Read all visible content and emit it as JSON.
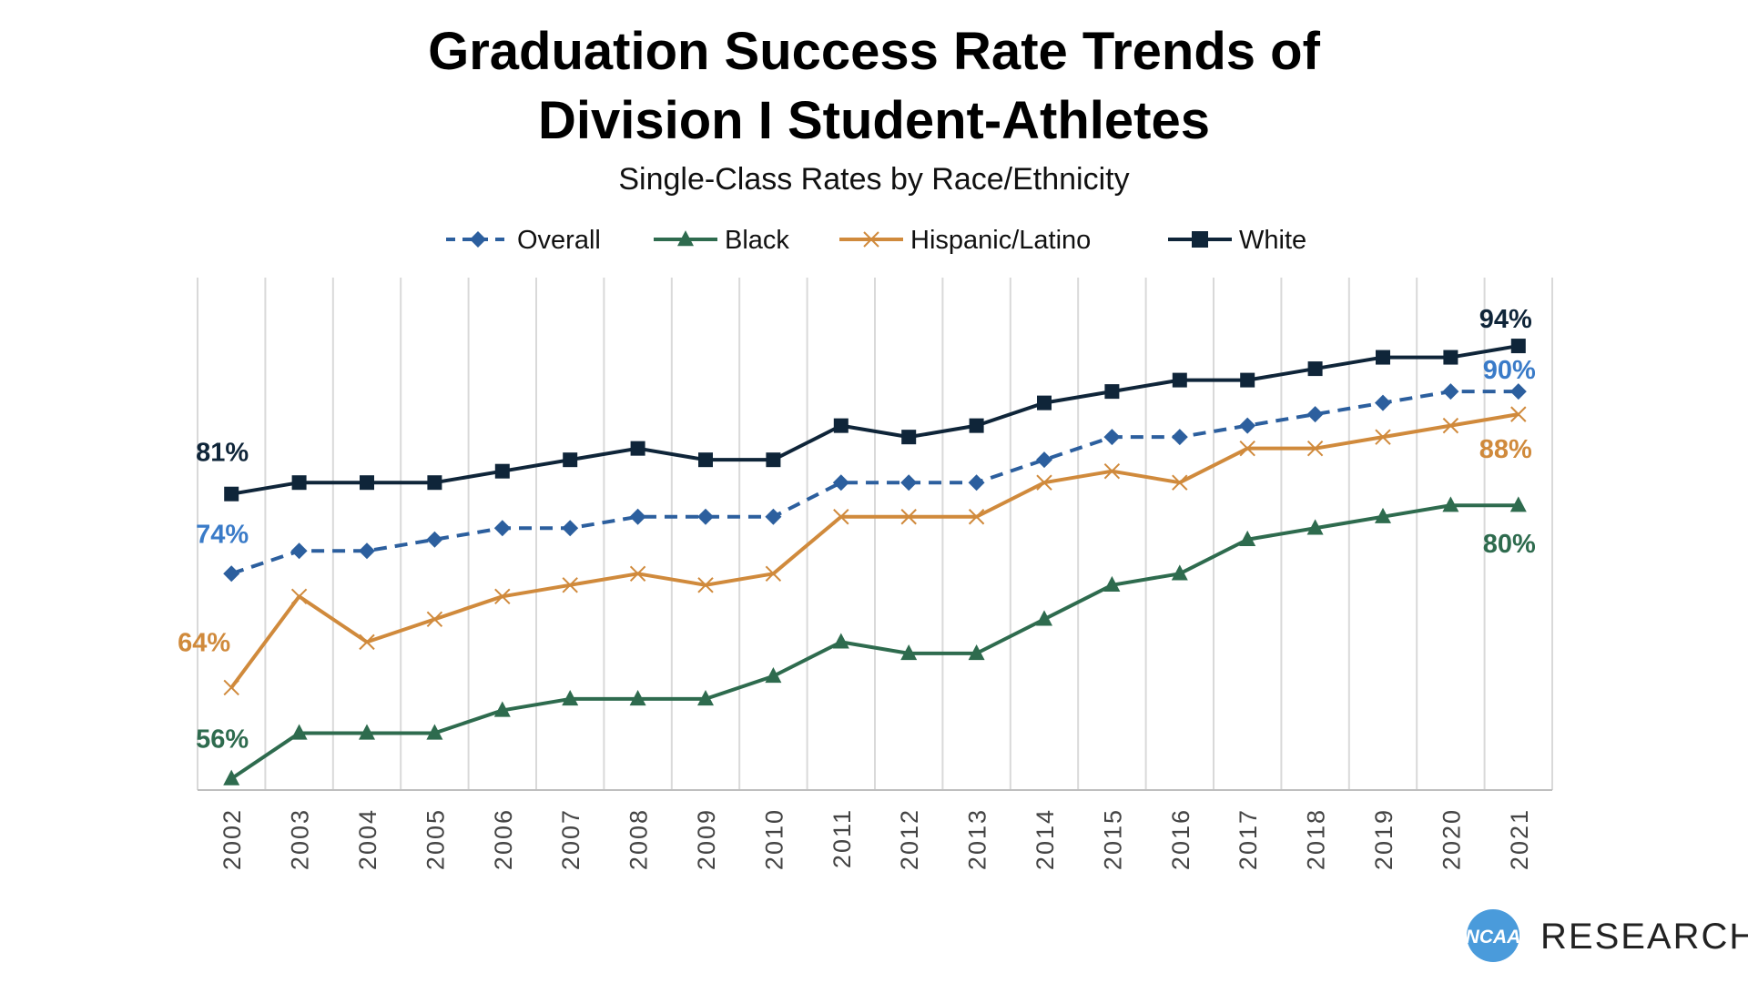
{
  "chart_data": {
    "type": "line",
    "title": "Graduation Success Rate Trends of",
    "title_line2": "Division I Student-Athletes",
    "subtitle": "Single-Class Rates by Race/Ethnicity",
    "xlabel": "",
    "ylabel": "",
    "ylim": [
      55,
      100
    ],
    "grid": "vertical",
    "legend_position": "top",
    "categories": [
      "2002",
      "2003",
      "2004",
      "2005",
      "2006",
      "2007",
      "2008",
      "2009",
      "2010",
      "2011",
      "2012",
      "2013",
      "2014",
      "2015",
      "2016",
      "2017",
      "2018",
      "2019",
      "2020",
      "2021"
    ],
    "series": [
      {
        "name": "Overall",
        "color": "#2C5F9E",
        "label_color": "#3A7BC8",
        "marker": "diamond",
        "dash": true,
        "values": [
          74,
          76,
          76,
          77,
          78,
          78,
          79,
          79,
          79,
          82,
          82,
          82,
          84,
          86,
          86,
          87,
          88,
          89,
          90,
          90
        ],
        "labels": {
          "first": "74%",
          "last": "90%"
        }
      },
      {
        "name": "Black",
        "color": "#2E6B4E",
        "label_color": "#2E6B4E",
        "marker": "triangle",
        "dash": false,
        "values": [
          56,
          60,
          60,
          60,
          62,
          63,
          63,
          63,
          65,
          68,
          67,
          67,
          70,
          73,
          74,
          77,
          78,
          79,
          80,
          80
        ],
        "labels": {
          "first": "56%",
          "last": "80%"
        }
      },
      {
        "name": "Hispanic/Latino",
        "color": "#D08A3C",
        "label_color": "#D08A3C",
        "marker": "x",
        "dash": false,
        "values": [
          64,
          72,
          68,
          70,
          72,
          73,
          74,
          73,
          74,
          79,
          79,
          79,
          82,
          83,
          82,
          85,
          85,
          86,
          87,
          88
        ],
        "labels": {
          "first": "64%",
          "last": "88%"
        }
      },
      {
        "name": "White",
        "color": "#0F2539",
        "label_color": "#0F2539",
        "marker": "square",
        "dash": false,
        "values": [
          81,
          82,
          82,
          82,
          83,
          84,
          85,
          84,
          84,
          87,
          86,
          87,
          89,
          90,
          91,
          91,
          92,
          93,
          93,
          94
        ],
        "labels": {
          "first": "81%",
          "last": "94%"
        }
      }
    ]
  },
  "branding": {
    "logo_text": "NCAA",
    "logo_color": "#4A9BDB",
    "label": "RESEARCH"
  }
}
